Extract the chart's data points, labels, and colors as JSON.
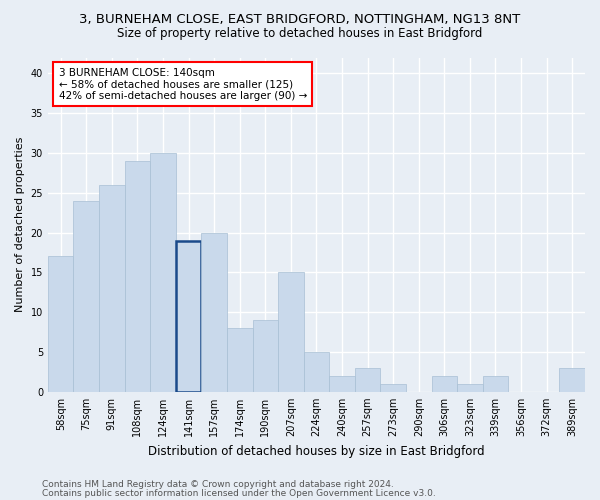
{
  "title": "3, BURNEHAM CLOSE, EAST BRIDGFORD, NOTTINGHAM, NG13 8NT",
  "subtitle": "Size of property relative to detached houses in East Bridgford",
  "xlabel": "Distribution of detached houses by size in East Bridgford",
  "ylabel": "Number of detached properties",
  "categories": [
    "58sqm",
    "75sqm",
    "91sqm",
    "108sqm",
    "124sqm",
    "141sqm",
    "157sqm",
    "174sqm",
    "190sqm",
    "207sqm",
    "224sqm",
    "240sqm",
    "257sqm",
    "273sqm",
    "290sqm",
    "306sqm",
    "323sqm",
    "339sqm",
    "356sqm",
    "372sqm",
    "389sqm"
  ],
  "values": [
    17,
    24,
    26,
    29,
    30,
    19,
    20,
    8,
    9,
    15,
    5,
    2,
    3,
    1,
    0,
    2,
    1,
    2,
    0,
    0,
    3
  ],
  "bar_color_default": "#c9d9eb",
  "bar_edge_color": "#a8bfd4",
  "highlight_index": 5,
  "highlight_bar_edge_color": "#1a4a8a",
  "highlight_edge_width": 1.8,
  "default_edge_width": 0.5,
  "ylim": [
    0,
    42
  ],
  "yticks": [
    0,
    5,
    10,
    15,
    20,
    25,
    30,
    35,
    40
  ],
  "annotation_text": "3 BURNEHAM CLOSE: 140sqm\n← 58% of detached houses are smaller (125)\n42% of semi-detached houses are larger (90) →",
  "footer_line1": "Contains HM Land Registry data © Crown copyright and database right 2024.",
  "footer_line2": "Contains public sector information licensed under the Open Government Licence v3.0.",
  "background_color": "#e8eef5",
  "plot_bg_color": "#e8eef5",
  "grid_color": "#ffffff",
  "title_fontsize": 9.5,
  "subtitle_fontsize": 8.5,
  "xlabel_fontsize": 8.5,
  "ylabel_fontsize": 8,
  "tick_fontsize": 7,
  "annotation_fontsize": 7.5,
  "footer_fontsize": 6.5
}
